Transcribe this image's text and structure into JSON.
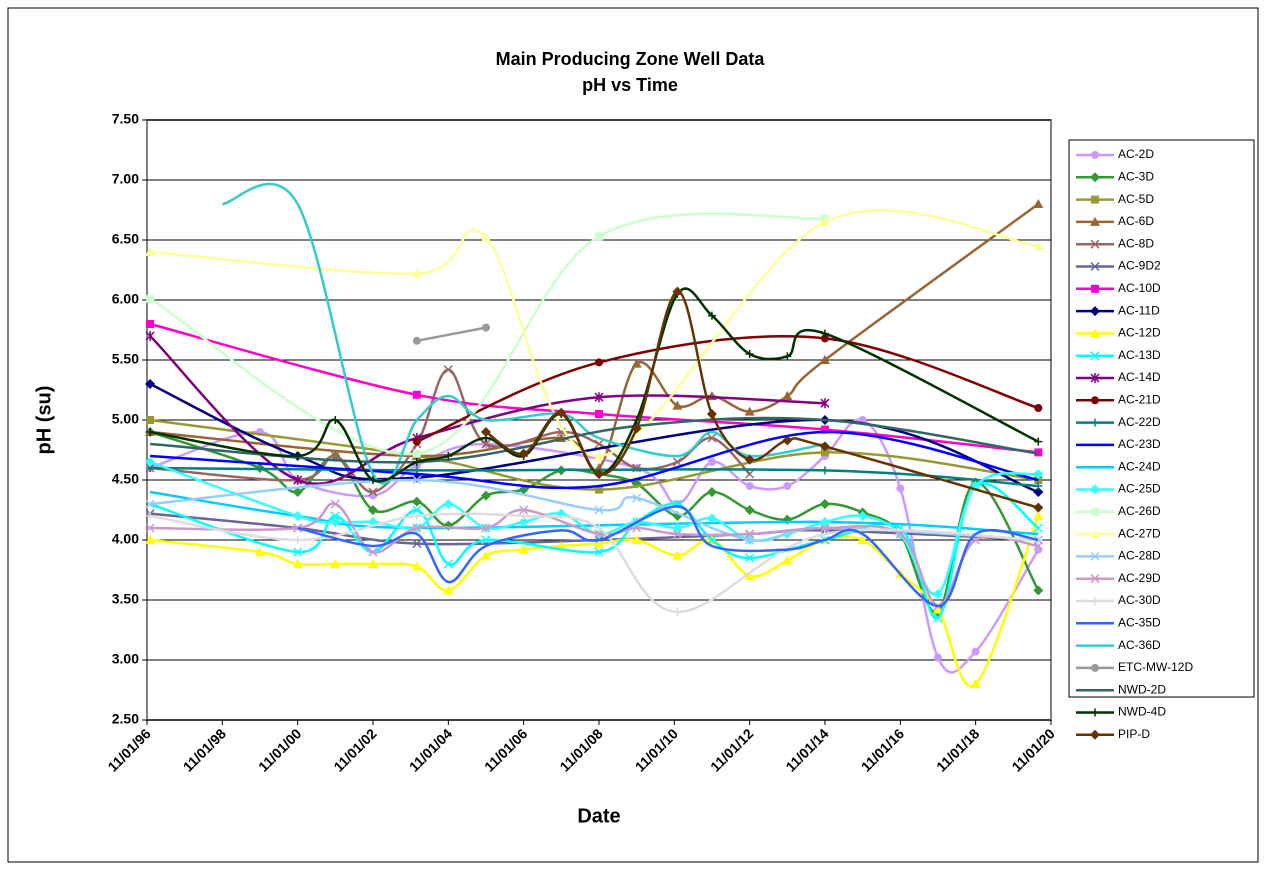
{
  "chart_data": {
    "type": "line",
    "title": "Main Producing Zone Well Data",
    "subtitle": "pH vs Time",
    "x_label": "Date",
    "y_label": "pH (su)",
    "xlim": [
      "11/01/96",
      "11/01/20"
    ],
    "xticks": [
      "11/01/96",
      "11/01/98",
      "11/01/00",
      "11/01/02",
      "11/01/04",
      "11/01/06",
      "11/01/08",
      "11/01/10",
      "11/01/12",
      "11/01/14",
      "11/01/16",
      "11/01/18",
      "11/01/20"
    ],
    "ylim": [
      2.5,
      7.5
    ],
    "yticks": [
      {
        "value": 2.5,
        "label": "2.50"
      },
      {
        "value": 3,
        "label": "3.00"
      },
      {
        "value": 3.5,
        "label": "3.50"
      },
      {
        "value": 4,
        "label": "4.00"
      },
      {
        "value": 4.5,
        "label": "4.50"
      },
      {
        "value": 5,
        "label": "5.00"
      },
      {
        "value": 5.5,
        "label": "5.50"
      },
      {
        "value": 6,
        "label": "6.00"
      },
      {
        "value": 6.5,
        "label": "6.50"
      },
      {
        "value": 7,
        "label": "7.00"
      },
      {
        "value": 7.5,
        "label": "7.50"
      }
    ],
    "grid": true,
    "smooth": true,
    "legend": "right",
    "series": [
      {
        "name": "AC-2D",
        "color": "#cc99ff",
        "marker": "circle",
        "x": [
          "12/01/96",
          "11/01/99",
          "11/01/00",
          "11/01/02",
          "01/01/04",
          "11/01/05",
          "11/01/09",
          "12/01/10",
          "11/01/11",
          "11/01/12",
          "11/01/13",
          "11/01/14",
          "11/01/15",
          "11/01/16",
          "11/01/17",
          "11/01/18",
          "07/01/20"
        ],
        "values": [
          4.6,
          4.9,
          4.5,
          4.37,
          4.62,
          4.8,
          4.6,
          4.3,
          4.65,
          4.45,
          4.45,
          4.7,
          5.0,
          4.43,
          3.02,
          3.07,
          3.92
        ]
      },
      {
        "name": "AC-3D",
        "color": "#339933",
        "marker": "diamond",
        "x": [
          "12/01/96",
          "11/01/99",
          "11/01/00",
          "11/01/01",
          "11/01/02",
          "01/01/04",
          "11/01/04",
          "11/01/05",
          "11/01/06",
          "11/01/07",
          "11/01/08",
          "11/01/09",
          "12/01/10",
          "11/01/11",
          "11/01/12",
          "11/01/13",
          "11/01/14",
          "11/01/15",
          "11/01/16",
          "11/01/17",
          "11/01/18",
          "07/01/20"
        ],
        "values": [
          4.9,
          4.6,
          4.4,
          4.7,
          4.25,
          4.32,
          4.12,
          4.37,
          4.42,
          4.58,
          4.55,
          4.47,
          4.2,
          4.4,
          4.25,
          4.17,
          4.3,
          4.23,
          4.05,
          3.4,
          4.48,
          3.58
        ]
      },
      {
        "name": "AC-5D",
        "color": "#999933",
        "marker": "square",
        "x": [
          "12/01/96",
          "01/01/04",
          "11/01/08",
          "11/01/14",
          "07/01/20"
        ],
        "values": [
          5.0,
          4.7,
          4.42,
          4.73,
          4.5
        ]
      },
      {
        "name": "AC-6D",
        "color": "#996633",
        "marker": "triangle",
        "x": [
          "12/01/96",
          "01/01/04",
          "11/01/07",
          "11/01/08",
          "11/01/09",
          "12/01/10",
          "11/01/11",
          "11/01/12",
          "11/01/13",
          "11/01/14",
          "07/01/20"
        ],
        "values": [
          4.9,
          4.7,
          4.85,
          4.6,
          5.47,
          5.12,
          5.2,
          5.07,
          5.2,
          5.5,
          6.8
        ]
      },
      {
        "name": "AC-8D",
        "color": "#996666",
        "marker": "x",
        "x": [
          "12/01/96",
          "11/01/00",
          "11/01/01",
          "11/01/02",
          "01/01/04",
          "11/01/04",
          "11/01/05",
          "11/01/07",
          "11/01/08",
          "11/01/09",
          "12/01/10",
          "11/01/11",
          "11/01/12"
        ],
        "values": [
          4.6,
          4.5,
          4.7,
          4.4,
          4.8,
          5.42,
          4.8,
          4.9,
          4.8,
          4.6,
          4.65,
          4.85,
          4.55
        ]
      },
      {
        "name": "AC-9D2",
        "color": "#666699",
        "marker": "x",
        "x": [
          "12/01/96",
          "11/01/00",
          "01/01/04",
          "11/01/08",
          "11/01/12",
          "11/01/14",
          "07/01/20"
        ],
        "values": [
          4.22,
          4.1,
          3.97,
          4.0,
          4.05,
          4.08,
          4.0
        ]
      },
      {
        "name": "AC-10D",
        "color": "#ff00cc",
        "marker": "square",
        "x": [
          "12/01/96",
          "01/01/04",
          "11/01/08",
          "11/01/14",
          "07/01/20"
        ],
        "values": [
          5.8,
          5.21,
          5.05,
          4.92,
          4.73
        ]
      },
      {
        "name": "AC-11D",
        "color": "#000080",
        "marker": "diamond",
        "x": [
          "12/01/96",
          "11/01/00",
          "01/01/04",
          "11/01/14",
          "07/01/20"
        ],
        "values": [
          5.3,
          4.7,
          4.52,
          5.0,
          4.4
        ]
      },
      {
        "name": "AC-12D",
        "color": "#ffff00",
        "marker": "triangle",
        "x": [
          "12/01/96",
          "11/01/99",
          "11/01/00",
          "11/01/01",
          "11/01/02",
          "01/01/04",
          "11/01/04",
          "11/01/05",
          "11/01/06",
          "11/01/07",
          "11/01/08",
          "11/01/09",
          "12/01/10",
          "11/01/11",
          "11/01/12",
          "11/01/13",
          "11/01/14",
          "11/01/15",
          "11/01/16",
          "11/01/17",
          "11/01/18",
          "07/01/20"
        ],
        "values": [
          4.0,
          3.9,
          3.8,
          3.8,
          3.8,
          3.78,
          3.58,
          3.87,
          3.92,
          3.95,
          3.97,
          4.0,
          3.87,
          4.0,
          3.7,
          3.83,
          4.0,
          4.0,
          3.72,
          3.42,
          2.8,
          4.2
        ]
      },
      {
        "name": "AC-13D",
        "color": "#00ffff",
        "marker": "x",
        "x": [
          "12/01/96",
          "11/01/00",
          "11/01/01",
          "11/01/02",
          "01/01/04",
          "11/01/04",
          "11/01/05",
          "11/01/08",
          "11/01/09",
          "12/01/10",
          "11/01/11",
          "11/01/12",
          "11/01/14",
          "11/01/16",
          "11/01/17",
          "11/01/18",
          "07/01/20"
        ],
        "values": [
          4.3,
          3.9,
          4.2,
          3.9,
          4.25,
          3.8,
          4.0,
          3.9,
          4.15,
          4.3,
          4.0,
          3.85,
          4.0,
          4.1,
          3.35,
          4.45,
          4.1
        ]
      },
      {
        "name": "AC-14D",
        "color": "#800080",
        "marker": "star",
        "x": [
          "12/01/96",
          "11/01/00",
          "01/01/04",
          "11/01/08",
          "11/01/14"
        ],
        "values": [
          5.7,
          4.5,
          4.85,
          5.19,
          5.14
        ]
      },
      {
        "name": "AC-21D",
        "color": "#800000",
        "marker": "circle",
        "x": [
          "01/01/04",
          "11/01/08",
          "11/01/14",
          "07/01/20"
        ],
        "values": [
          4.82,
          5.48,
          5.68,
          5.1
        ]
      },
      {
        "name": "AC-22D",
        "color": "#008080",
        "marker": "plus",
        "x": [
          "12/01/96",
          "01/01/04",
          "11/01/14",
          "07/01/20"
        ],
        "values": [
          4.6,
          4.58,
          4.58,
          4.45
        ]
      },
      {
        "name": "AC-23D",
        "color": "#0000ff",
        "marker": "none",
        "x": [
          "12/01/96",
          "01/01/04",
          "11/01/08",
          "11/01/14",
          "07/01/20"
        ],
        "values": [
          4.7,
          4.55,
          4.45,
          4.9,
          4.5
        ]
      },
      {
        "name": "AC-24D",
        "color": "#00ccff",
        "marker": "none",
        "x": [
          "12/01/96",
          "11/01/00",
          "01/01/04",
          "11/01/14",
          "07/01/20"
        ],
        "values": [
          4.4,
          4.2,
          4.1,
          4.15,
          4.05
        ]
      },
      {
        "name": "AC-25D",
        "color": "#33ffff",
        "marker": "diamond",
        "x": [
          "12/01/96",
          "11/01/00",
          "11/01/01",
          "11/01/02",
          "01/01/04",
          "11/01/04",
          "11/01/05",
          "11/01/06",
          "11/01/07",
          "11/01/08",
          "11/01/09",
          "12/01/10",
          "11/01/11",
          "11/01/12",
          "11/01/13",
          "11/01/14",
          "11/01/15",
          "11/01/16",
          "11/01/17",
          "11/01/18",
          "07/01/20"
        ],
        "values": [
          4.65,
          4.2,
          4.15,
          4.15,
          4.1,
          4.3,
          4.1,
          4.15,
          4.22,
          4.05,
          4.15,
          4.1,
          4.18,
          4.0,
          4.05,
          4.15,
          4.2,
          4.05,
          3.55,
          4.45,
          4.55
        ]
      },
      {
        "name": "AC-26D",
        "color": "#ccffcc",
        "marker": "square",
        "x": [
          "12/01/96",
          "01/01/04",
          "11/01/08",
          "11/01/14"
        ],
        "values": [
          6.01,
          4.72,
          6.53,
          6.68
        ]
      },
      {
        "name": "AC-27D",
        "color": "#ffff99",
        "marker": "triangle",
        "x": [
          "12/01/96",
          "01/01/04",
          "11/01/05",
          "11/01/08",
          "11/01/14",
          "07/01/20"
        ],
        "values": [
          6.4,
          6.22,
          6.52,
          4.7,
          6.65,
          6.45
        ]
      },
      {
        "name": "AC-28D",
        "color": "#99ccff",
        "marker": "x",
        "x": [
          "12/01/96",
          "01/01/04",
          "11/01/08",
          "11/01/09",
          "11/01/12",
          "11/01/14",
          "07/01/20"
        ],
        "values": [
          4.3,
          4.5,
          4.25,
          4.35,
          4.0,
          4.1,
          4.0
        ]
      },
      {
        "name": "AC-29D",
        "color": "#cc99cc",
        "marker": "x",
        "x": [
          "12/01/96",
          "11/01/00",
          "11/01/01",
          "11/01/02",
          "01/01/04",
          "11/01/05",
          "11/01/06",
          "11/01/08",
          "11/01/09",
          "12/01/10",
          "11/01/12",
          "11/01/14",
          "11/01/16",
          "11/01/17",
          "11/01/18",
          "07/01/20"
        ],
        "values": [
          4.1,
          4.1,
          4.3,
          3.9,
          4.1,
          4.1,
          4.25,
          4.05,
          4.1,
          4.05,
          4.05,
          4.1,
          4.05,
          3.45,
          4.0,
          3.95
        ]
      },
      {
        "name": "AC-30D",
        "color": "#dddddd",
        "marker": "plus",
        "x": [
          "12/01/96",
          "11/01/00",
          "01/01/04",
          "11/01/06",
          "11/01/08",
          "12/01/10",
          "11/01/14",
          "07/01/20"
        ],
        "values": [
          4.2,
          4.0,
          4.2,
          4.2,
          4.1,
          3.4,
          4.05,
          4.0
        ]
      },
      {
        "name": "AC-35D",
        "color": "#3366ff",
        "marker": "none",
        "x": [
          "11/01/00",
          "11/01/02",
          "01/01/04",
          "11/01/04",
          "11/01/05",
          "11/01/07",
          "11/01/08",
          "12/01/10",
          "11/01/11",
          "11/01/13",
          "11/01/14",
          "11/01/15",
          "11/01/17",
          "11/01/18",
          "07/01/20"
        ],
        "values": [
          4.1,
          3.95,
          4.05,
          3.65,
          3.95,
          4.08,
          4.0,
          4.28,
          3.95,
          3.92,
          4.0,
          4.05,
          3.45,
          4.05,
          4.0
        ]
      },
      {
        "name": "AC-36D",
        "color": "#33cccc",
        "marker": "none",
        "x": [
          "11/01/98",
          "11/01/00",
          "11/01/02",
          "01/01/04",
          "11/01/04",
          "11/01/05",
          "11/01/07",
          "11/01/08",
          "12/01/10",
          "11/01/11",
          "11/01/12",
          "11/01/14"
        ],
        "values": [
          6.8,
          6.8,
          4.55,
          5.0,
          5.2,
          5.0,
          5.05,
          4.85,
          4.7,
          4.9,
          4.7,
          4.8
        ]
      },
      {
        "name": "ETC-MW-12D",
        "color": "#999999",
        "marker": "circle",
        "x": [
          "01/01/04",
          "11/01/05"
        ],
        "values": [
          5.66,
          5.77
        ]
      },
      {
        "name": "NWD-2D",
        "color": "#336666",
        "marker": "none",
        "x": [
          "12/01/96",
          "01/01/04",
          "11/01/09",
          "11/01/14",
          "07/01/20"
        ],
        "values": [
          4.8,
          4.65,
          4.95,
          5.0,
          4.72
        ]
      },
      {
        "name": "NWD-4D",
        "color": "#003300",
        "marker": "plus",
        "x": [
          "12/01/96",
          "11/01/00",
          "11/01/01",
          "11/01/02",
          "01/01/04",
          "11/01/04",
          "11/01/05",
          "11/01/06",
          "11/01/07",
          "11/01/08",
          "11/01/09",
          "12/01/10",
          "11/01/11",
          "11/01/12",
          "11/01/13",
          "11/01/14",
          "07/01/20"
        ],
        "values": [
          4.9,
          4.7,
          5.0,
          4.5,
          4.65,
          4.7,
          4.85,
          4.7,
          5.05,
          4.55,
          5.0,
          6.05,
          5.87,
          5.55,
          5.53,
          5.72,
          4.82
        ]
      },
      {
        "name": "PIP-D",
        "color": "#663300",
        "marker": "diamond",
        "x": [
          "11/01/05",
          "11/01/06",
          "11/01/07",
          "11/01/08",
          "11/01/09",
          "12/01/10",
          "11/01/11",
          "11/01/12",
          "11/01/13",
          "11/01/14",
          "07/01/20"
        ],
        "values": [
          4.9,
          4.72,
          5.06,
          4.55,
          4.93,
          6.07,
          5.05,
          4.67,
          4.83,
          4.78,
          4.27
        ]
      }
    ]
  }
}
